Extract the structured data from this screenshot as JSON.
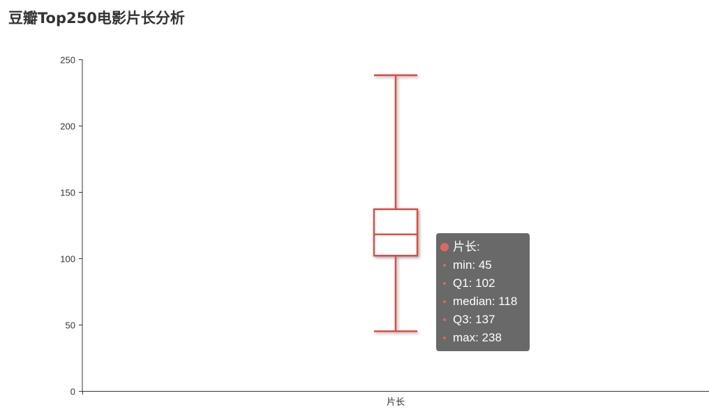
{
  "page": {
    "title": "豆瓣Top250电影片长分析"
  },
  "chart_data": {
    "type": "boxplot",
    "title": "豆瓣Top250电影片长分析",
    "categories": [
      "片长"
    ],
    "series": [
      {
        "name": "片长",
        "min": 45,
        "q1": 102,
        "median": 118,
        "q3": 137,
        "max": 238
      }
    ],
    "ylim": [
      0,
      250
    ],
    "yticks": [
      0,
      50,
      100,
      150,
      200,
      250
    ],
    "grid": false,
    "color": "#d94e45"
  },
  "tooltip": {
    "header": "片长:",
    "rows": [
      {
        "label": "min",
        "text": "min: 45"
      },
      {
        "label": "Q1",
        "text": "Q1: 102"
      },
      {
        "label": "median",
        "text": "median: 118"
      },
      {
        "label": "Q3",
        "text": "Q3: 137"
      },
      {
        "label": "max",
        "text": "max: 238"
      }
    ],
    "bg_color": "#505050",
    "text_color": "#ffffff"
  }
}
